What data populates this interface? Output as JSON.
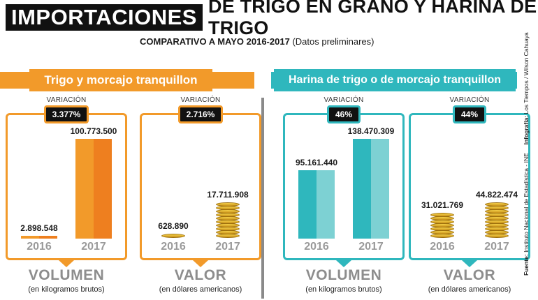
{
  "header": {
    "title_highlight": "IMPORTACIONES",
    "title_rest": "DE TRIGO EN GRANO Y HARINA DE TRIGO",
    "subtitle_bold": "COMPARATIVO A MAYO 2016-2017",
    "subtitle_note": "(Datos preliminares)"
  },
  "colors": {
    "orange": "#f29a2a",
    "orange_dark": "#ee7f1f",
    "teal": "#2fb7bd",
    "teal_light": "#7dd1d3",
    "badge": "#111111"
  },
  "groups": [
    {
      "label": "Trigo y morcajo tranquillon"
    },
    {
      "label": "Harina de trigo o de morcajo tranquillon"
    }
  ],
  "panels": [
    {
      "variation_label": "VARIACIÓN",
      "variation": "3.377%",
      "value_2016": "2.898.548",
      "value_2017": "100.773.500",
      "year_2016": "2016",
      "year_2017": "2017",
      "category": "VOLUMEN",
      "unit": "(en kilogramos brutos)"
    },
    {
      "variation_label": "VARIACIÓN",
      "variation": "2.716%",
      "value_2016": "628.890",
      "value_2017": "17.711.908",
      "year_2016": "2016",
      "year_2017": "2017",
      "category": "VALOR",
      "unit": "(en dólares americanos)"
    },
    {
      "variation_label": "VARIACIÓN",
      "variation": "46%",
      "value_2016": "95.161.440",
      "value_2017": "138.470.309",
      "year_2016": "2016",
      "year_2017": "2017",
      "category": "VOLUMEN",
      "unit": "(en kilogramos brutos)"
    },
    {
      "variation_label": "VARIACIÓN",
      "variation": "44%",
      "value_2016": "31.021.769",
      "value_2017": "44.822.474",
      "year_2016": "2016",
      "year_2017": "2017",
      "category": "VALOR",
      "unit": "(en dólares americanos)"
    }
  ],
  "credits": {
    "fuente_label": "Fuente:",
    "fuente": "Instituto Nacional de Estadística - INE",
    "infografia_label": "Infografía:",
    "infografia": "Los Tiempos / Wilson Cahuaya"
  },
  "chart_data": [
    {
      "type": "bar",
      "group": "Trigo y morcajo tranquillon",
      "categories": [
        "2016",
        "2017"
      ],
      "values": [
        2898548,
        100773500
      ],
      "xlabel": "VOLUMEN",
      "ylabel": "(en kilogramos brutos)",
      "variation": "3.377%"
    },
    {
      "type": "bar",
      "group": "Trigo y morcajo tranquillon",
      "categories": [
        "2016",
        "2017"
      ],
      "values": [
        628890,
        17711908
      ],
      "xlabel": "VALOR",
      "ylabel": "(en dólares americanos)",
      "variation": "2.716%"
    },
    {
      "type": "bar",
      "group": "Harina de trigo o de morcajo tranquillon",
      "categories": [
        "2016",
        "2017"
      ],
      "values": [
        95161440,
        138470309
      ],
      "xlabel": "VOLUMEN",
      "ylabel": "(en kilogramos brutos)",
      "variation": "46%"
    },
    {
      "type": "bar",
      "group": "Harina de trigo o de morcajo tranquillon",
      "categories": [
        "2016",
        "2017"
      ],
      "values": [
        31021769,
        44822474
      ],
      "xlabel": "VALOR",
      "ylabel": "(en dólares americanos)",
      "variation": "44%"
    }
  ]
}
